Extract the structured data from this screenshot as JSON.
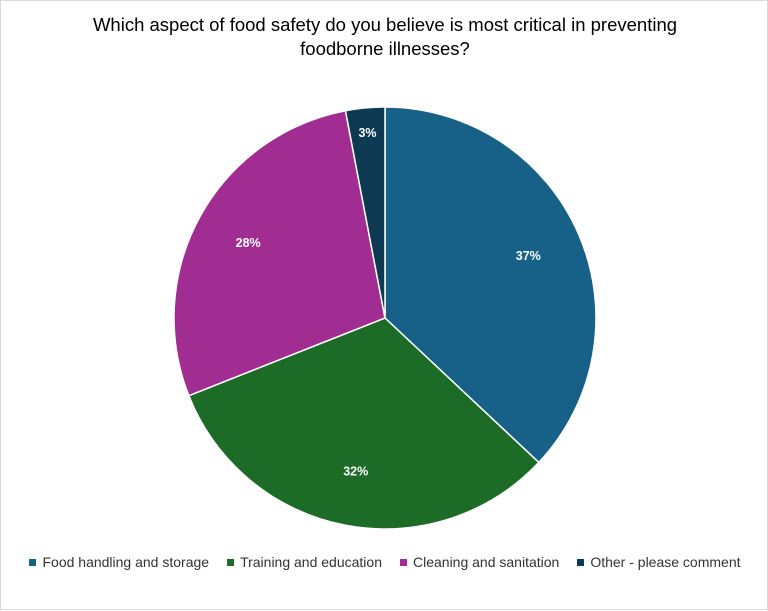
{
  "chart_data": {
    "type": "pie",
    "title": "Which aspect of food safety do you believe is most critical in preventing\nfoodborne illnesses?",
    "slices": [
      {
        "name": "Food handling and storage",
        "value": 37,
        "label": "37%",
        "color": "#176087"
      },
      {
        "name": "Training and education",
        "value": 32,
        "label": "32%",
        "color": "#1c6b27"
      },
      {
        "name": "Cleaning and sanitation",
        "value": 28,
        "label": "28%",
        "color": "#a12d93"
      },
      {
        "name": "Other - please comment",
        "value": 3,
        "label": "3%",
        "color": "#0d3a52"
      }
    ],
    "legend_position": "bottom",
    "start_angle": "12 o'clock",
    "direction": "clockwise"
  }
}
